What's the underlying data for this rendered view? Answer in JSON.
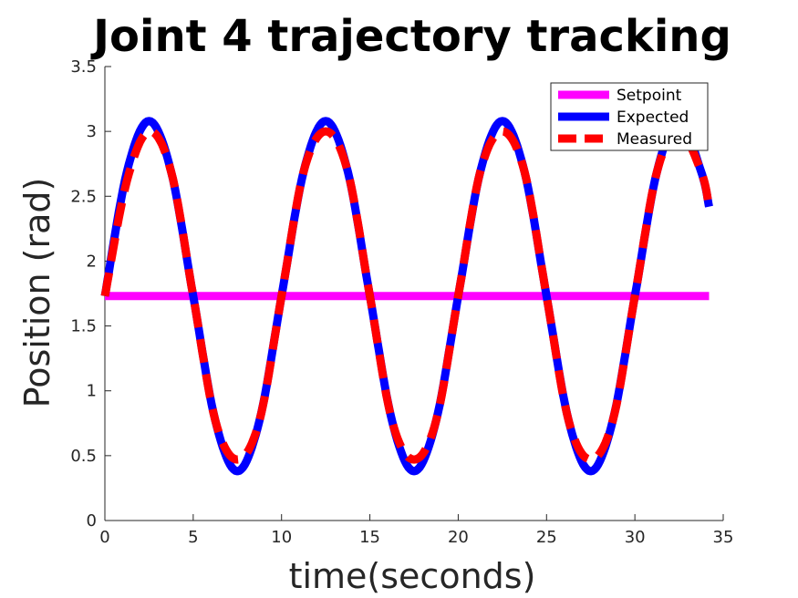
{
  "chart_data": {
    "type": "line",
    "title": "Joint 4 trajectory tracking",
    "xlabel": "time(seconds)",
    "ylabel": "Position (rad)",
    "xlim": [
      0,
      35
    ],
    "ylim": [
      0,
      3.5
    ],
    "xticks": [
      0,
      5,
      10,
      15,
      20,
      25,
      30,
      35
    ],
    "yticks": [
      0,
      0.5,
      1,
      1.5,
      2,
      2.5,
      3,
      3.5
    ],
    "grid": false,
    "legend_position": "top-right",
    "series": [
      {
        "name": "Setpoint",
        "color": "#ff00ff",
        "style": "solid",
        "x": [
          0,
          34.2
        ],
        "y": [
          1.73,
          1.73
        ]
      },
      {
        "name": "Expected",
        "color": "#0000ff",
        "style": "solid",
        "x": [
          0,
          1.25,
          2.5,
          3.75,
          5,
          6.25,
          7.5,
          8.75,
          10,
          11.25,
          12.5,
          13.75,
          15,
          16.25,
          17.5,
          18.75,
          20,
          21.25,
          22.5,
          23.75,
          25,
          26.25,
          27.5,
          28.75,
          30,
          31.25,
          32.5,
          33.75,
          34.2
        ],
        "y": [
          1.73,
          2.69,
          3.08,
          2.69,
          1.73,
          0.77,
          0.38,
          0.77,
          1.73,
          2.69,
          3.08,
          2.69,
          1.73,
          0.77,
          0.38,
          0.77,
          1.73,
          2.69,
          3.08,
          2.69,
          1.73,
          0.77,
          0.38,
          0.77,
          1.73,
          2.69,
          3.08,
          2.69,
          2.42
        ]
      },
      {
        "name": "Measured",
        "color": "#ff0000",
        "style": "dashed",
        "x": [
          0,
          1.25,
          2.5,
          3.75,
          5,
          6.25,
          7.5,
          8.75,
          10,
          11.25,
          12.5,
          13.75,
          15,
          16.25,
          17.5,
          18.75,
          20,
          21.25,
          22.5,
          23.75,
          25,
          26.25,
          27.5,
          28.75,
          30,
          31.25,
          32.5,
          33.75,
          34.2
        ],
        "y": [
          1.73,
          2.62,
          3.0,
          2.69,
          1.73,
          0.77,
          0.47,
          0.77,
          1.73,
          2.69,
          3.0,
          2.69,
          1.73,
          0.77,
          0.47,
          0.77,
          1.73,
          2.69,
          3.0,
          2.69,
          1.73,
          0.77,
          0.47,
          0.77,
          1.73,
          2.69,
          3.0,
          2.69,
          2.42
        ]
      }
    ]
  }
}
